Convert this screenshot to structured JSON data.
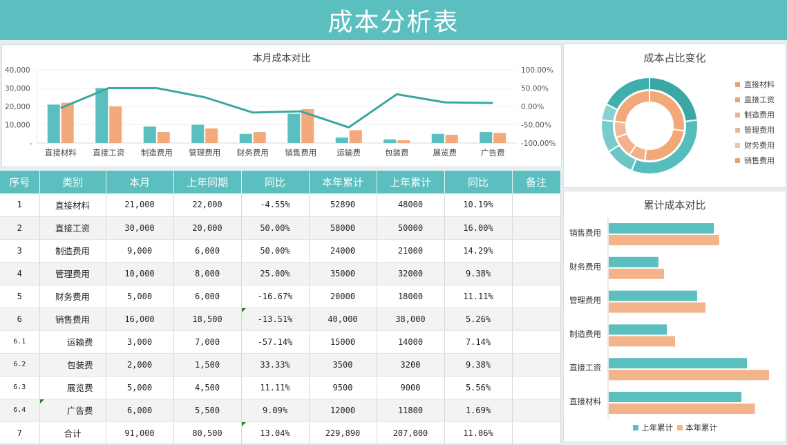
{
  "header": {
    "title": "成本分析表"
  },
  "colors": {
    "teal": "#5bbfbf",
    "salmon": "#f4a97a",
    "teal_dark": "#3aa7a3",
    "header_bg": "#5bbfbf"
  },
  "monthly_chart": {
    "title": "本月成本对比",
    "left_ticks": [
      "40,000",
      "30,000",
      "20,000",
      "10,000",
      "-"
    ],
    "right_ticks": [
      "100.00%",
      "50.00%",
      "0.00%",
      "-50.00%",
      "-100.00%"
    ]
  },
  "donut_chart": {
    "title": "成本占比变化",
    "legend": [
      "直接材料",
      "直接工资",
      "制造费用",
      "管理费用",
      "财务费用",
      "销售费用"
    ]
  },
  "bar_chart": {
    "title": "累计成本对比",
    "legend": [
      "上年累计",
      "本年累计"
    ]
  },
  "table": {
    "headers": [
      "序号",
      "类别",
      "本月",
      "上年同期",
      "同比",
      "本年累计",
      "上年累计",
      "同比",
      "备注"
    ],
    "rows": [
      {
        "idx": "1",
        "cat": "直接材料",
        "cur": "21,000",
        "prev": "22,000",
        "yoy": "-4.55%",
        "ytd": "52890",
        "prev_ytd": "48000",
        "yoy_ytd": "10.19%",
        "note": ""
      },
      {
        "idx": "2",
        "cat": "直接工资",
        "cur": "30,000",
        "prev": "20,000",
        "yoy": "50.00%",
        "ytd": "58000",
        "prev_ytd": "50000",
        "yoy_ytd": "16.00%",
        "note": ""
      },
      {
        "idx": "3",
        "cat": "制造费用",
        "cur": "9,000",
        "prev": "6,000",
        "yoy": "50.00%",
        "ytd": "24000",
        "prev_ytd": "21000",
        "yoy_ytd": "14.29%",
        "note": ""
      },
      {
        "idx": "4",
        "cat": "管理费用",
        "cur": "10,000",
        "prev": "8,000",
        "yoy": "25.00%",
        "ytd": "35000",
        "prev_ytd": "32000",
        "yoy_ytd": "9.38%",
        "note": ""
      },
      {
        "idx": "5",
        "cat": "财务费用",
        "cur": "5,000",
        "prev": "6,000",
        "yoy": "-16.67%",
        "ytd": "20000",
        "prev_ytd": "18000",
        "yoy_ytd": "11.11%",
        "note": ""
      },
      {
        "idx": "6",
        "cat": "销售费用",
        "cur": "16,000",
        "prev": "18,500",
        "yoy": "-13.51%",
        "ytd": "40,000",
        "prev_ytd": "38,000",
        "yoy_ytd": "5.26%",
        "note": ""
      },
      {
        "idx": "6.1",
        "cat": "运输费",
        "cur": "3,000",
        "prev": "7,000",
        "yoy": "-57.14%",
        "ytd": "15000",
        "prev_ytd": "14000",
        "yoy_ytd": "7.14%",
        "note": ""
      },
      {
        "idx": "6.2",
        "cat": "包装费",
        "cur": "2,000",
        "prev": "1,500",
        "yoy": "33.33%",
        "ytd": "3500",
        "prev_ytd": "3200",
        "yoy_ytd": "9.38%",
        "note": ""
      },
      {
        "idx": "6.3",
        "cat": "展览费",
        "cur": "5,000",
        "prev": "4,500",
        "yoy": "11.11%",
        "ytd": "9500",
        "prev_ytd": "9000",
        "yoy_ytd": "5.56%",
        "note": ""
      },
      {
        "idx": "6.4",
        "cat": "广告费",
        "cur": "6,000",
        "prev": "5,500",
        "yoy": "9.09%",
        "ytd": "12000",
        "prev_ytd": "11800",
        "yoy_ytd": "1.69%",
        "note": ""
      },
      {
        "idx": "7",
        "cat": "合计",
        "cur": "91,000",
        "prev": "80,500",
        "yoy": "13.04%",
        "ytd": "229,890",
        "prev_ytd": "207,000",
        "yoy_ytd": "11.06%",
        "note": ""
      }
    ]
  },
  "chart_data": [
    {
      "type": "bar",
      "title": "本月成本对比",
      "categories": [
        "直接材料",
        "直接工资",
        "制造费用",
        "管理费用",
        "财务费用",
        "销售费用",
        "运输费",
        "包装费",
        "展览费",
        "广告费"
      ],
      "series": [
        {
          "name": "本月",
          "kind": "bar",
          "axis": "left",
          "color": "#5bbfbf",
          "values": [
            21000,
            30000,
            9000,
            10000,
            5000,
            16000,
            3000,
            2000,
            5000,
            6000
          ]
        },
        {
          "name": "上年同期",
          "kind": "bar",
          "axis": "left",
          "color": "#f4a97a",
          "values": [
            22000,
            20000,
            6000,
            8000,
            6000,
            18500,
            7000,
            1500,
            4500,
            5500
          ]
        },
        {
          "name": "同比",
          "kind": "line",
          "axis": "right",
          "color": "#3aa7a3",
          "values": [
            -4.55,
            50.0,
            50.0,
            25.0,
            -16.67,
            -13.51,
            -57.14,
            33.33,
            11.11,
            9.09
          ]
        }
      ],
      "ylim": [
        0,
        40000
      ],
      "y2lim": [
        -100,
        100
      ],
      "yticks": [
        "-",
        "10,000",
        "20,000",
        "30,000",
        "40,000"
      ],
      "y2ticks": [
        "-100.00%",
        "-50.00%",
        "0.00%",
        "50.00%",
        "100.00%"
      ],
      "grid": true,
      "legend": "none"
    },
    {
      "type": "pie",
      "title": "成本占比变化",
      "subtype": "double-donut",
      "categories": [
        "直接材料",
        "直接工资",
        "制造费用",
        "管理费用",
        "财务费用",
        "销售费用"
      ],
      "series": [
        {
          "name": "本月 (outer)",
          "color": "#5bbfbf",
          "values": [
            21000,
            30000,
            9000,
            10000,
            5000,
            16000
          ]
        },
        {
          "name": "上年同期 (inner)",
          "color": "#f4a97a",
          "values": [
            22000,
            20000,
            6000,
            8000,
            6000,
            18500
          ]
        }
      ],
      "legend_position": "right"
    },
    {
      "type": "bar",
      "orientation": "horizontal",
      "title": "累计成本对比",
      "categories": [
        "直接材料",
        "直接工资",
        "制造费用",
        "管理费用",
        "财务费用",
        "销售费用"
      ],
      "series": [
        {
          "name": "上年累计",
          "color": "#5bbfbf",
          "values": [
            48000,
            50000,
            21000,
            32000,
            18000,
            38000
          ]
        },
        {
          "name": "本年累计",
          "color": "#f4b48a",
          "values": [
            52890,
            58000,
            24000,
            35000,
            20000,
            40000
          ]
        }
      ],
      "legend_position": "bottom"
    }
  ]
}
